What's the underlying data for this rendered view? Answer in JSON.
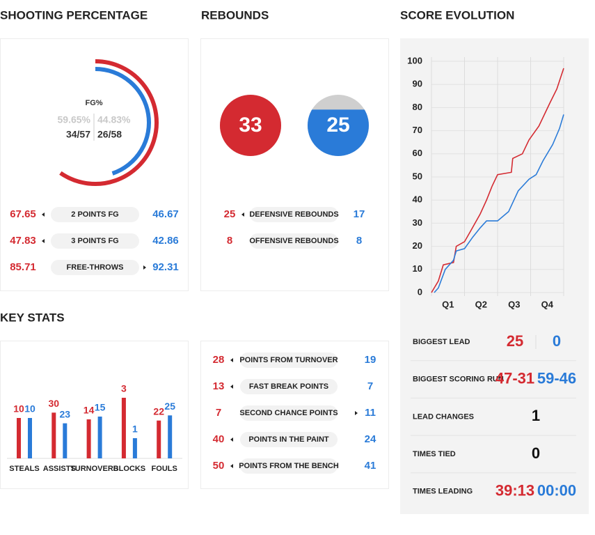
{
  "team_colors": [
    "#d42a31",
    "#2a7bd8"
  ],
  "shooting": {
    "title": "SHOOTING PERCENTAGE",
    "fg": {
      "label": "FG%",
      "values": [
        59.65,
        44.83
      ],
      "value_labels": [
        "59.65%",
        "44.83%"
      ],
      "made": [
        "34/57",
        "26/58"
      ]
    },
    "rows": [
      {
        "label": "2 POINTS FG",
        "values": [
          67.65,
          46.67
        ]
      },
      {
        "label": "3 POINTS FG",
        "values": [
          47.83,
          42.86
        ]
      },
      {
        "label": "FREE-THROWS",
        "values": [
          85.71,
          92.31
        ]
      }
    ]
  },
  "rebounds": {
    "title": "REBOUNDS",
    "totals": [
      33,
      25
    ],
    "rows": [
      {
        "label": "DEFENSIVE REBOUNDS",
        "values": [
          25,
          17
        ]
      },
      {
        "label": "OFFENSIVE REBOUNDS",
        "values": [
          8,
          8
        ]
      }
    ]
  },
  "chart_data": [
    {
      "type": "line",
      "title": "SCORE EVOLUTION",
      "categories": [
        "Q1",
        "Q2",
        "Q3",
        "Q4"
      ],
      "xlim": [
        0,
        48
      ],
      "xticks": [
        0,
        12,
        24,
        36,
        48
      ],
      "ylim": [
        0,
        100
      ],
      "yticks": [
        0,
        10,
        20,
        30,
        40,
        50,
        60,
        70,
        80,
        90,
        100
      ],
      "grid": true,
      "series": [
        {
          "color": "#d42a31",
          "x": [
            0,
            2.5,
            4.3,
            8,
            9,
            12,
            14.4,
            17.7,
            20,
            22,
            24,
            29,
            29.5,
            33,
            35.4,
            39,
            43,
            45.5,
            48
          ],
          "values": [
            0,
            5,
            12,
            13,
            20,
            22,
            27,
            34,
            40,
            46,
            51,
            52,
            58,
            60,
            66,
            72,
            82,
            88,
            97
          ]
        },
        {
          "color": "#2a7bd8",
          "x": [
            1,
            2.5,
            5,
            8,
            9,
            12,
            15,
            17.7,
            20,
            24,
            28,
            31.5,
            35.4,
            38,
            40.5,
            44,
            46.5,
            48
          ],
          "values": [
            0,
            2,
            10,
            14,
            18,
            19,
            24,
            28,
            31,
            31,
            35,
            44,
            49,
            51,
            57,
            64,
            71,
            77
          ]
        }
      ]
    },
    {
      "type": "bar",
      "title": "KEY STATS",
      "categories": [
        "STEALS",
        "ASSISTS",
        "TURNOVERS",
        "BLOCKS",
        "FOULS"
      ],
      "series": [
        {
          "color": "#d42a31",
          "values": [
            10,
            30,
            14,
            3,
            22
          ]
        },
        {
          "color": "#2a7bd8",
          "values": [
            10,
            23,
            15,
            1,
            25
          ]
        }
      ]
    }
  ],
  "points": {
    "rows": [
      {
        "label": "POINTS FROM TURNOVER",
        "values": [
          28,
          19
        ]
      },
      {
        "label": "FAST BREAK POINTS",
        "values": [
          13,
          7
        ]
      },
      {
        "label": "SECOND CHANCE POINTS",
        "values": [
          7,
          11
        ]
      },
      {
        "label": "POINTS IN THE PAINT",
        "values": [
          40,
          24
        ]
      },
      {
        "label": "POINTS FROM THE BENCH",
        "values": [
          50,
          41
        ]
      }
    ]
  },
  "summary": {
    "rows": [
      {
        "label": "BIGGEST LEAD",
        "values": [
          25,
          0
        ]
      },
      {
        "label": "BIGGEST SCORING RUN",
        "values": [
          "47-31",
          "59-46"
        ]
      },
      {
        "label": "LEAD CHANGES",
        "value": 1
      },
      {
        "label": "TIMES TIED",
        "value": 0
      },
      {
        "label": "TIMES LEADING",
        "values": [
          "39:13",
          "00:00"
        ]
      }
    ]
  }
}
